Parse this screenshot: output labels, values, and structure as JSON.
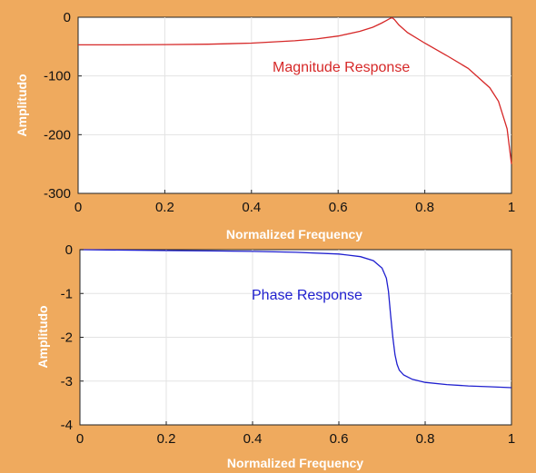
{
  "colors": {
    "background": "#efaa5e",
    "magnitude_curve": "#d62828",
    "phase_curve": "#1f1fcf",
    "axis_label": "#ffffff",
    "tick_label": "#111111"
  },
  "chart_data": [
    {
      "type": "line",
      "xlabel": "Normalized Frequency",
      "ylabel": "Amplitudo",
      "xlim": [
        0,
        1
      ],
      "ylim": [
        -300,
        0
      ],
      "xticks": [
        "0",
        "0.2",
        "0.4",
        "0.6",
        "0.8",
        "1"
      ],
      "yticks": [
        "0",
        "-100",
        "-200",
        "-300"
      ],
      "grid": true,
      "annotation": "Magnitude Response",
      "series": [
        {
          "x": [
            0,
            0.1,
            0.2,
            0.3,
            0.4,
            0.5,
            0.55,
            0.6,
            0.65,
            0.68,
            0.7,
            0.71,
            0.72,
            0.725,
            0.73,
            0.74,
            0.76,
            0.8,
            0.85,
            0.9,
            0.95,
            0.97,
            0.99,
            1.0
          ],
          "y": [
            -47,
            -47,
            -46.5,
            -46,
            -44,
            -40,
            -37,
            -32,
            -24,
            -17,
            -10,
            -6,
            -2,
            -1,
            -4,
            -13,
            -26,
            -44,
            -65,
            -87,
            -120,
            -143,
            -190,
            -250
          ]
        }
      ]
    },
    {
      "type": "line",
      "xlabel": "Normalized Frequency",
      "ylabel": "Amplitudo",
      "xlim": [
        0,
        1
      ],
      "ylim": [
        -4,
        0
      ],
      "xticks": [
        "0",
        "0.2",
        "0.4",
        "0.6",
        "0.8",
        "1"
      ],
      "yticks": [
        "0",
        "-1",
        "-2",
        "-3",
        "-4"
      ],
      "grid": true,
      "annotation": "Phase Response",
      "series": [
        {
          "x": [
            0,
            0.1,
            0.2,
            0.3,
            0.4,
            0.5,
            0.6,
            0.65,
            0.68,
            0.7,
            0.71,
            0.715,
            0.72,
            0.725,
            0.73,
            0.735,
            0.74,
            0.75,
            0.77,
            0.8,
            0.85,
            0.9,
            0.95,
            1.0
          ],
          "y": [
            0,
            -0.01,
            -0.02,
            -0.03,
            -0.04,
            -0.06,
            -0.1,
            -0.16,
            -0.25,
            -0.42,
            -0.65,
            -0.95,
            -1.5,
            -2.0,
            -2.4,
            -2.62,
            -2.75,
            -2.86,
            -2.96,
            -3.03,
            -3.08,
            -3.11,
            -3.13,
            -3.15
          ]
        }
      ]
    }
  ]
}
